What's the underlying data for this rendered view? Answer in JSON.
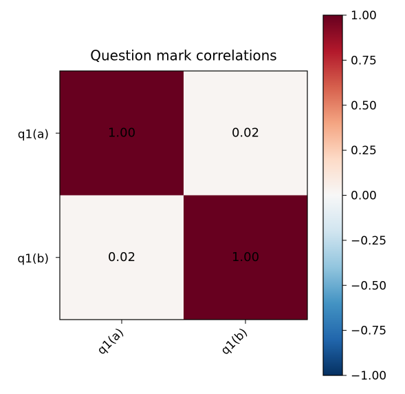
{
  "chart_data": {
    "type": "heatmap",
    "title": "Question mark correlations",
    "x_categories": [
      "q1(a)",
      "q1(b)"
    ],
    "y_categories": [
      "q1(a)",
      "q1(b)"
    ],
    "values": [
      [
        1.0,
        0.02
      ],
      [
        0.02,
        1.0
      ]
    ],
    "value_labels": [
      [
        "1.00",
        "0.02"
      ],
      [
        "0.02",
        "1.00"
      ]
    ],
    "colormap": "RdBu_r",
    "clim": [
      -1.0,
      1.0
    ],
    "cticks": [
      {
        "value": -1.0,
        "label": "−1.00"
      },
      {
        "value": -0.75,
        "label": "−0.75"
      },
      {
        "value": -0.5,
        "label": "−0.50"
      },
      {
        "value": -0.25,
        "label": "−0.25"
      },
      {
        "value": 0.0,
        "label": "0.00"
      },
      {
        "value": 0.25,
        "label": "0.25"
      },
      {
        "value": 0.5,
        "label": "0.50"
      },
      {
        "value": 0.75,
        "label": "0.75"
      },
      {
        "value": 1.0,
        "label": "1.00"
      }
    ]
  }
}
